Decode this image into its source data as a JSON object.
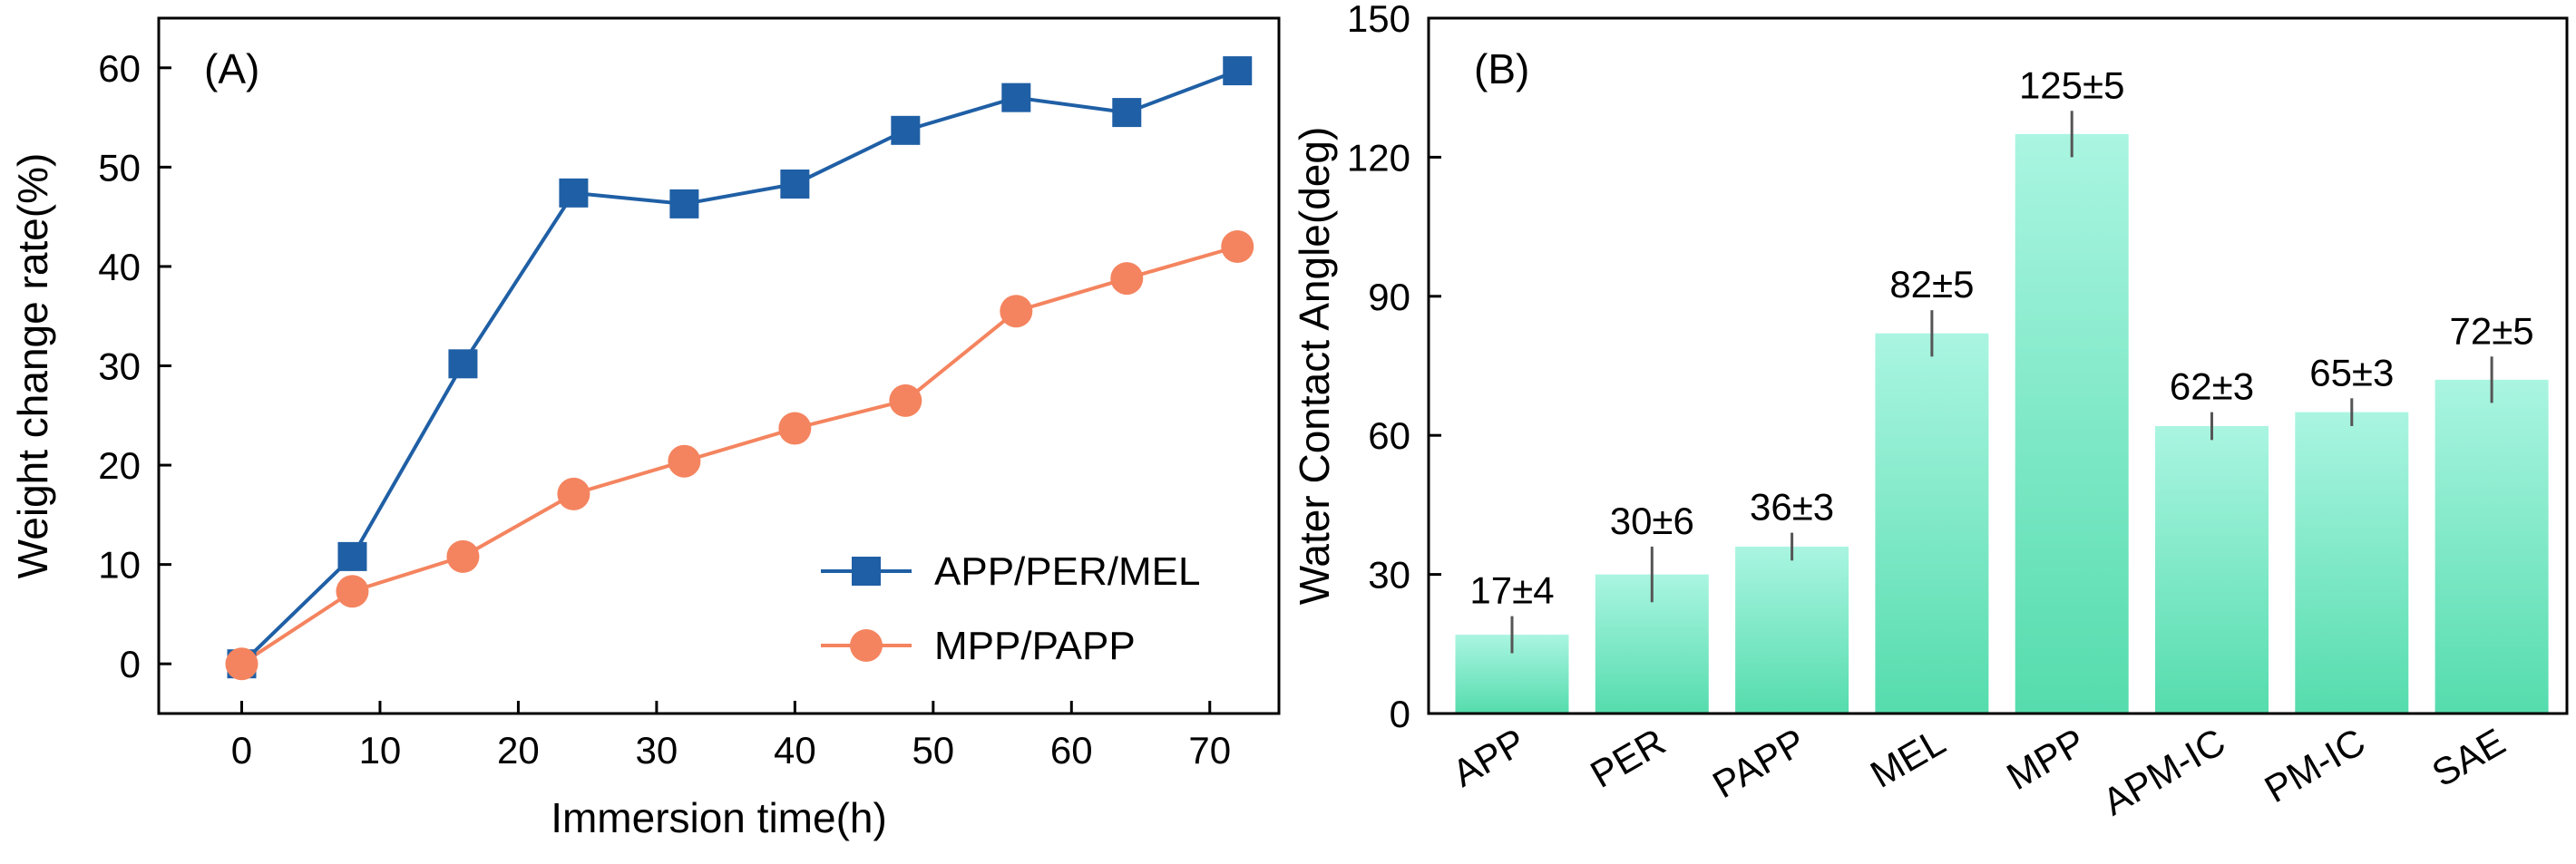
{
  "colors": {
    "series1": "#1f5fa5",
    "series2": "#f4845f",
    "bar_top": "#aaf5e1",
    "bar_bottom": "#55dcad",
    "errbar": "#555555"
  },
  "chart_data": [
    {
      "type": "line",
      "panel": "(A)",
      "xlabel": "Immersion time(h)",
      "ylabel": "Weight change rate(%)",
      "xlim": [
        -6,
        75
      ],
      "ylim": [
        -5,
        65
      ],
      "xticks": [
        0,
        10,
        20,
        30,
        40,
        50,
        60,
        70
      ],
      "yticks": [
        0,
        10,
        20,
        30,
        40,
        50,
        60
      ],
      "legend_position": "lower-right",
      "series": [
        {
          "name": "APP/PER/MEL",
          "marker": "square",
          "color": "#1f5fa5",
          "x": [
            0,
            8,
            16,
            24,
            32,
            40,
            48,
            56,
            64,
            72
          ],
          "y": [
            0,
            10.8,
            30.2,
            47.4,
            46.3,
            48.3,
            53.7,
            57.0,
            55.5,
            59.7
          ]
        },
        {
          "name": "MPP/PAPP",
          "marker": "circle",
          "color": "#f4845f",
          "x": [
            0,
            8,
            16,
            24,
            32,
            40,
            48,
            56,
            64,
            72
          ],
          "y": [
            0,
            7.3,
            10.8,
            17.1,
            20.4,
            23.7,
            26.5,
            35.5,
            38.8,
            42.0
          ]
        }
      ]
    },
    {
      "type": "bar",
      "panel": "(B)",
      "xlabel": "",
      "ylabel": "Water Contact Angle(deg)",
      "ylim": [
        0,
        150
      ],
      "yticks": [
        0,
        30,
        60,
        90,
        120,
        150
      ],
      "categories": [
        "APP",
        "PER",
        "PAPP",
        "MEL",
        "MPP",
        "APM-IC",
        "PM-IC",
        "SAE"
      ],
      "values": [
        17,
        30,
        36,
        82,
        125,
        62,
        65,
        72
      ],
      "errors": [
        4,
        6,
        3,
        5,
        5,
        3,
        3,
        5
      ],
      "data_labels": [
        "17±4",
        "30±6",
        "36±3",
        "82±5",
        "125±5",
        "62±3",
        "65±3",
        "72±5"
      ]
    }
  ]
}
